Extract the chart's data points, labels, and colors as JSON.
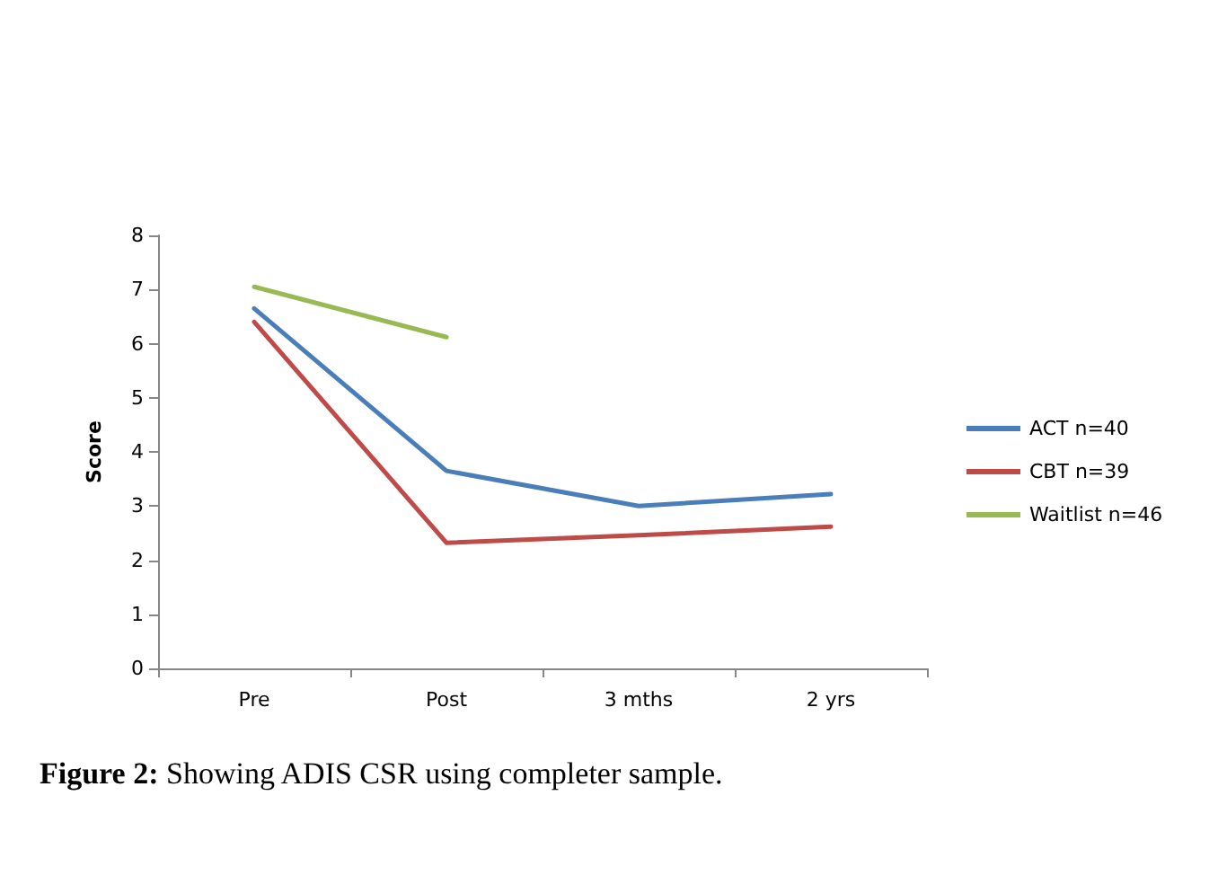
{
  "chart_data": {
    "type": "line",
    "ylabel": "Score",
    "categories": [
      "Pre",
      "Post",
      "3 mths",
      "2 yrs"
    ],
    "series": [
      {
        "name": "ACT n=40",
        "color": "#4a7ebb",
        "values": [
          6.65,
          3.65,
          3.0,
          3.22
        ]
      },
      {
        "name": "CBT n=39",
        "color": "#be4b48",
        "values": [
          6.4,
          2.32,
          2.46,
          2.62
        ]
      },
      {
        "name": "Waitlist n=46",
        "color": "#98b954",
        "values": [
          7.05,
          6.12,
          null,
          null
        ]
      }
    ],
    "ylim": [
      0,
      8
    ],
    "yticks": [
      0,
      1,
      2,
      3,
      4,
      5,
      6,
      7,
      8
    ],
    "grid": false,
    "legend": "right",
    "marker": "none",
    "line_style": "solid",
    "annotations": [
      "Figure 2: Showing ADIS CSR using completer sample."
    ]
  }
}
